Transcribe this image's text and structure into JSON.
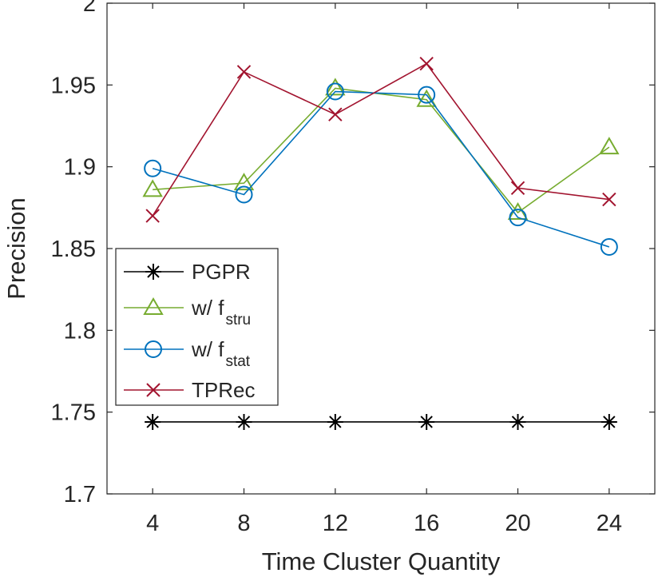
{
  "chart_data": {
    "type": "line",
    "title": "",
    "xlabel": "Time Cluster Quantity",
    "ylabel": "Precision",
    "x": [
      4,
      8,
      12,
      16,
      20,
      24
    ],
    "x_ticks": [
      "4",
      "8",
      "12",
      "16",
      "20",
      "24"
    ],
    "ylim": [
      1.7,
      2.0
    ],
    "y_ticks": [
      "1.7",
      "1.75",
      "1.8",
      "1.85",
      "1.9",
      "1.95",
      "2"
    ],
    "y_tick_values": [
      1.7,
      1.75,
      1.8,
      1.85,
      1.9,
      1.95,
      2.0
    ],
    "grid": false,
    "legend_position": "lower-left",
    "series": [
      {
        "name": "PGPR",
        "name_main": "PGPR",
        "name_sub": "",
        "color": "#000000",
        "marker": "asterisk",
        "values": [
          1.744,
          1.744,
          1.744,
          1.744,
          1.744,
          1.744
        ]
      },
      {
        "name": "w/ f_stru",
        "name_main": "w/ f",
        "name_sub": "stru",
        "color": "#77AC30",
        "marker": "triangle",
        "values": [
          1.886,
          1.89,
          1.948,
          1.941,
          1.872,
          1.912
        ]
      },
      {
        "name": "w/ f_stat",
        "name_main": "w/ f",
        "name_sub": "stat",
        "color": "#0072BD",
        "marker": "circle",
        "values": [
          1.899,
          1.883,
          1.946,
          1.944,
          1.869,
          1.851
        ]
      },
      {
        "name": "TPRec",
        "name_main": "TPRec",
        "name_sub": "",
        "color": "#A2142F",
        "marker": "x",
        "values": [
          1.87,
          1.958,
          1.932,
          1.963,
          1.887,
          1.88
        ]
      }
    ]
  }
}
